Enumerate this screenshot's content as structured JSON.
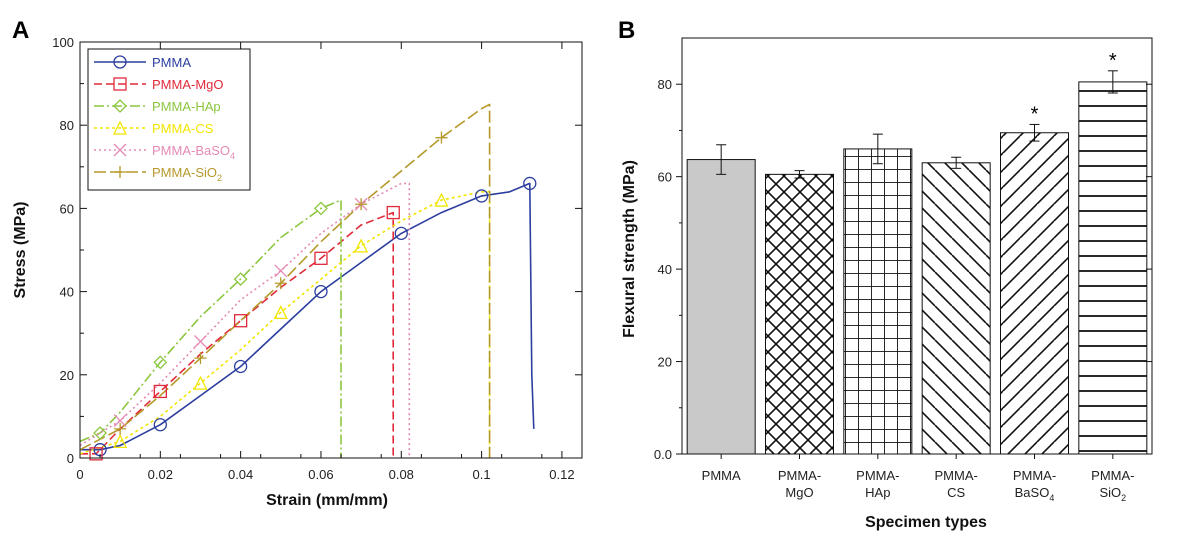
{
  "panels": {
    "a_label": "A",
    "b_label": "B"
  },
  "chart_data": [
    {
      "type": "line",
      "xlabel": "Strain (mm/mm)",
      "ylabel": "Stress (MPa)",
      "xlim": [
        0,
        0.125
      ],
      "ylim": [
        0,
        100
      ],
      "xticks": [
        0,
        0.02,
        0.04,
        0.06,
        0.08,
        0.1,
        0.12
      ],
      "xtick_labels": [
        "0",
        "0.02",
        "0.04",
        "0.06",
        "0.08",
        "0.1",
        "0.12"
      ],
      "yticks": [
        0,
        20,
        40,
        60,
        80,
        100
      ],
      "ytick_labels": [
        "0",
        "20",
        "40",
        "60",
        "80",
        "100"
      ],
      "legend_position": "top-left",
      "series": [
        {
          "name": "PMMA",
          "sub": "",
          "color": "#2c3e9e",
          "marker": "circle",
          "dash": "",
          "x": [
            0,
            0.005,
            0.01,
            0.02,
            0.03,
            0.04,
            0.05,
            0.06,
            0.07,
            0.08,
            0.09,
            0.1,
            0.107,
            0.112,
            0.1125,
            0.113
          ],
          "y": [
            2,
            2,
            3,
            8,
            15,
            22,
            31,
            40,
            47,
            54,
            59,
            63,
            64,
            66,
            20,
            7
          ]
        },
        {
          "name": "PMMA-MgO",
          "sub": "",
          "color": "#e02a3a",
          "marker": "square",
          "dash": "8,4",
          "x": [
            0,
            0.004,
            0.01,
            0.02,
            0.03,
            0.04,
            0.05,
            0.06,
            0.07,
            0.078,
            0.078,
            0.078
          ],
          "y": [
            1,
            1,
            7,
            16,
            25,
            33,
            41,
            48,
            56,
            59,
            30,
            0
          ]
        },
        {
          "name": "PMMA-HAp",
          "sub": "",
          "color": "#8cc63f",
          "marker": "diamond",
          "dash": "10,3,2,3",
          "x": [
            0,
            0.005,
            0.01,
            0.02,
            0.03,
            0.04,
            0.05,
            0.06,
            0.065,
            0.065
          ],
          "y": [
            4,
            6,
            11,
            23,
            34,
            43,
            53,
            60,
            62,
            0
          ]
        },
        {
          "name": "PMMA-CS",
          "sub": "",
          "color": "#f2e500",
          "marker": "triangle",
          "dash": "3,3",
          "x": [
            0,
            0.01,
            0.02,
            0.03,
            0.04,
            0.05,
            0.06,
            0.07,
            0.08,
            0.09,
            0.1,
            0.102,
            0.102
          ],
          "y": [
            1,
            4,
            10,
            18,
            26,
            35,
            43,
            51,
            57,
            62,
            64,
            64,
            0
          ]
        },
        {
          "name": "PMMA-BaSO",
          "sub": "4",
          "color": "#e58ab5",
          "marker": "cross",
          "dash": "2,3",
          "x": [
            0,
            0.01,
            0.02,
            0.03,
            0.04,
            0.05,
            0.06,
            0.07,
            0.08,
            0.082,
            0.082
          ],
          "y": [
            3,
            9,
            18,
            28,
            38,
            45,
            54,
            61,
            66,
            66,
            0
          ]
        },
        {
          "name": "PMMA-SiO",
          "sub": "2",
          "color": "#b5992a",
          "marker": "plus",
          "dash": "12,4",
          "x": [
            0,
            0.01,
            0.02,
            0.03,
            0.04,
            0.05,
            0.06,
            0.07,
            0.08,
            0.09,
            0.1,
            0.102,
            0.102
          ],
          "y": [
            2,
            7,
            15,
            24,
            33,
            42,
            52,
            61,
            69,
            77,
            84,
            85,
            0
          ]
        }
      ]
    },
    {
      "type": "bar",
      "xlabel": "Specimen types",
      "ylabel": "Flexural strength (MPa)",
      "ylim": [
        0,
        90
      ],
      "yticks": [
        0,
        20,
        40,
        60,
        80
      ],
      "ytick_labels": [
        "0.0",
        "20",
        "40",
        "60",
        "80"
      ],
      "categories": [
        {
          "line1": "PMMA",
          "line2": "",
          "sub": ""
        },
        {
          "line1": "PMMA-",
          "line2": "MgO",
          "sub": ""
        },
        {
          "line1": "PMMA-",
          "line2": "HAp",
          "sub": ""
        },
        {
          "line1": "PMMA-",
          "line2": "CS",
          "sub": ""
        },
        {
          "line1": "PMMA-",
          "line2": "BaSO",
          "sub": "4"
        },
        {
          "line1": "PMMA-",
          "line2": "SiO",
          "sub": "2"
        }
      ],
      "values": [
        63.7,
        60.5,
        66.0,
        63.0,
        69.5,
        80.5
      ],
      "errors": [
        3.2,
        0.8,
        3.2,
        1.2,
        1.8,
        2.4
      ],
      "significance": [
        "",
        "",
        "",
        "",
        "*",
        "*"
      ],
      "patterns": [
        "solid-gray",
        "crosshatch",
        "grid",
        "diag-back",
        "diag-fwd",
        "horizontal"
      ]
    }
  ]
}
